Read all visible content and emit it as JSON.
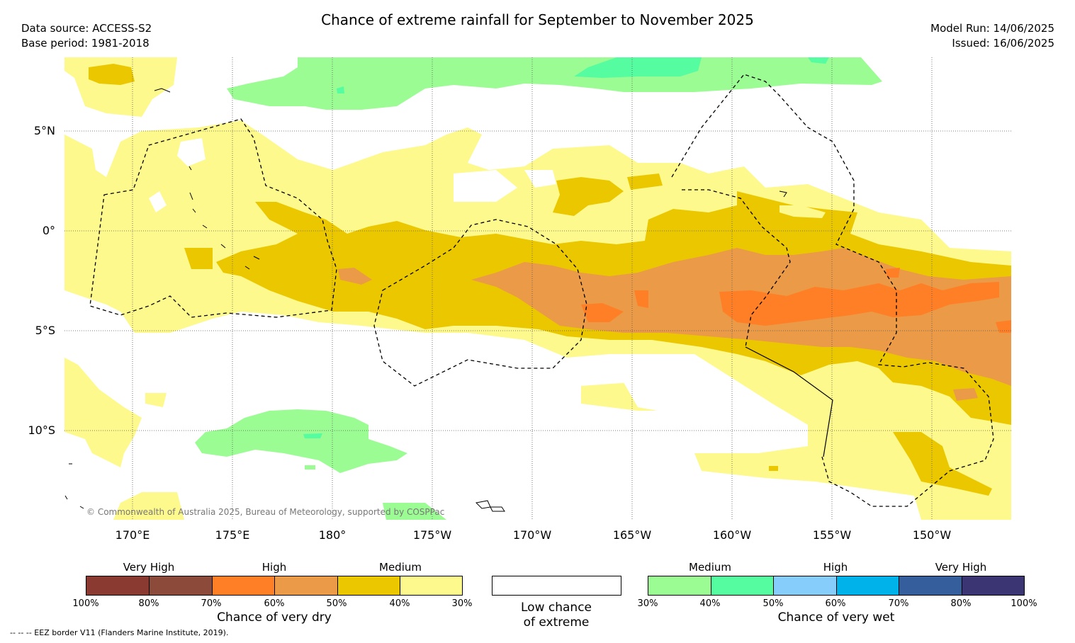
{
  "title": "Chance of extreme rainfall for September to November 2025",
  "meta_left": {
    "source": "Data source: ACCESS-S2",
    "base": "Base period: 1981-2018"
  },
  "meta_right": {
    "model_run": "Model Run: 14/06/2025",
    "issued": "Issued: 16/06/2025"
  },
  "map": {
    "lat_labels": [
      "5°N",
      "0°",
      "5°S",
      "10°S"
    ],
    "lon_labels": [
      "170°E",
      "175°E",
      "180°",
      "175°W",
      "170°W",
      "165°W",
      "160°W",
      "155°W",
      "150°W"
    ],
    "copyright": "© Commonwealth of Australia 2025, Bureau of Meteorology, supported by COSPPac"
  },
  "colors": {
    "dry_80_100": "#8b3a32",
    "dry_70_80": "#8c4a3a",
    "dry_60_70": "#ff7f26",
    "dry_50_60": "#eb9a47",
    "dry_40_50": "#ebc700",
    "dry_30_40": "#fef98c",
    "wet_30_40": "#9cfc94",
    "wet_40_50": "#55fca0",
    "wet_50_60": "#87cdfc",
    "wet_60_70": "#00b2ea",
    "wet_70_80": "#345e9c",
    "wet_80_100": "#3c3574"
  },
  "legend_dry": {
    "captions": [
      "Very High",
      "High",
      "Medium"
    ],
    "ticks": [
      "100%",
      "80%",
      "70%",
      "60%",
      "50%",
      "40%",
      "30%"
    ],
    "title": "Chance of very dry"
  },
  "legend_low": {
    "title_line1": "Low chance",
    "title_line2": "of extreme"
  },
  "legend_wet": {
    "captions": [
      "Medium",
      "High",
      "Very High"
    ],
    "ticks": [
      "30%",
      "40%",
      "50%",
      "60%",
      "70%",
      "80%",
      "100%"
    ],
    "title": "Chance of very wet"
  },
  "footnote": "--  --  -- EEZ border V11 (Flanders Marine Institute, 2019)."
}
